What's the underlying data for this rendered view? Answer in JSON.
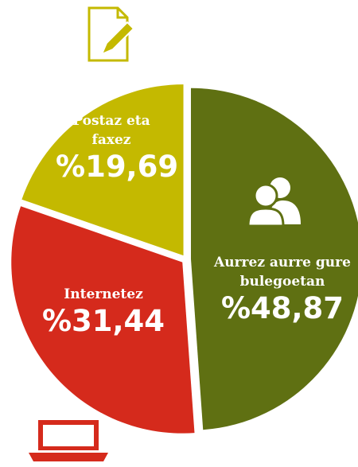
{
  "chart_data": {
    "type": "pie",
    "categories": [
      "Aurrez aurre gure bulegoetan",
      "Internetez",
      "Postaz eta faxez"
    ],
    "values": [
      48.87,
      31.44,
      19.69
    ],
    "value_labels": [
      "%48,87",
      "%31,44",
      "%19,69"
    ],
    "colors": [
      "#5f7012",
      "#d52a1c",
      "#c4b900"
    ]
  }
}
